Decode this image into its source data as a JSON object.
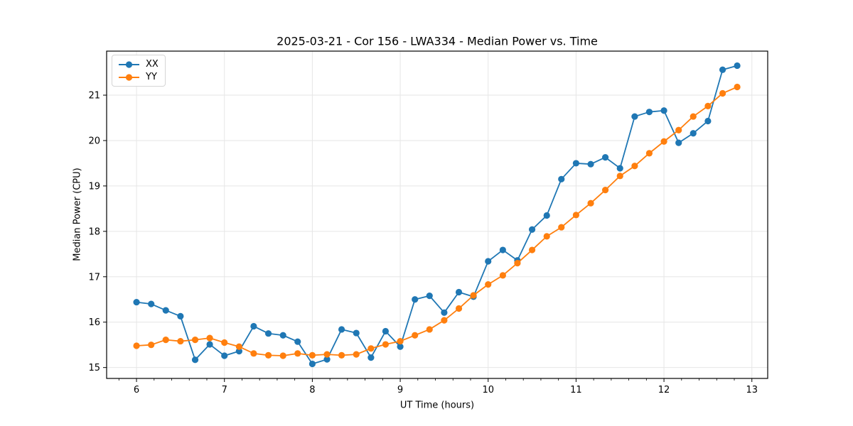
{
  "chart_data": {
    "type": "line",
    "title": "2025-03-21 - Cor 156 - LWA334 - Median Power vs. Time",
    "xlabel": "UT Time (hours)",
    "ylabel": "Median Power (CPU)",
    "xlim": [
      5.66,
      13.18
    ],
    "ylim": [
      14.76,
      21.97
    ],
    "xticks": [
      6,
      7,
      8,
      9,
      10,
      11,
      12,
      13
    ],
    "yticks": [
      15,
      16,
      17,
      18,
      19,
      20,
      21
    ],
    "x_minor_step": 0.2,
    "grid": true,
    "legend_position": "upper left",
    "marker": "circle",
    "x": [
      6.0,
      6.167,
      6.333,
      6.5,
      6.667,
      6.833,
      7.0,
      7.167,
      7.333,
      7.5,
      7.667,
      7.833,
      8.0,
      8.167,
      8.333,
      8.5,
      8.667,
      8.833,
      9.0,
      9.167,
      9.333,
      9.5,
      9.667,
      9.833,
      10.0,
      10.167,
      10.333,
      10.5,
      10.667,
      10.833,
      11.0,
      11.167,
      11.333,
      11.5,
      11.667,
      11.833,
      12.0,
      12.167,
      12.333,
      12.5,
      12.667,
      12.833
    ],
    "series": [
      {
        "name": "XX",
        "color": "#1f77b4",
        "values": [
          16.44,
          16.4,
          16.26,
          16.13,
          15.17,
          15.51,
          15.26,
          15.36,
          15.91,
          15.75,
          15.71,
          15.57,
          15.08,
          15.18,
          15.84,
          15.76,
          15.22,
          15.8,
          15.46,
          16.5,
          16.58,
          16.21,
          16.66,
          16.56,
          17.34,
          17.59,
          17.36,
          18.04,
          18.35,
          19.15,
          19.5,
          19.48,
          19.63,
          19.39,
          20.53,
          20.63,
          20.66,
          19.95,
          20.16,
          20.43,
          21.56,
          21.65
        ]
      },
      {
        "name": "YY",
        "color": "#ff7f0e",
        "values": [
          15.48,
          15.5,
          15.61,
          15.58,
          15.61,
          15.65,
          15.55,
          15.46,
          15.31,
          15.27,
          15.26,
          15.31,
          15.27,
          15.29,
          15.27,
          15.29,
          15.42,
          15.51,
          15.58,
          15.71,
          15.84,
          16.04,
          16.3,
          16.59,
          16.83,
          17.03,
          17.3,
          17.59,
          17.89,
          18.09,
          18.36,
          18.62,
          18.91,
          19.22,
          19.44,
          19.72,
          19.98,
          20.23,
          20.53,
          20.76,
          21.04,
          21.18
        ]
      }
    ]
  },
  "style": {
    "grid_color": "#e6e6e6",
    "spine_color": "#000000",
    "tick_label_color": "#000000",
    "background": "#ffffff"
  }
}
